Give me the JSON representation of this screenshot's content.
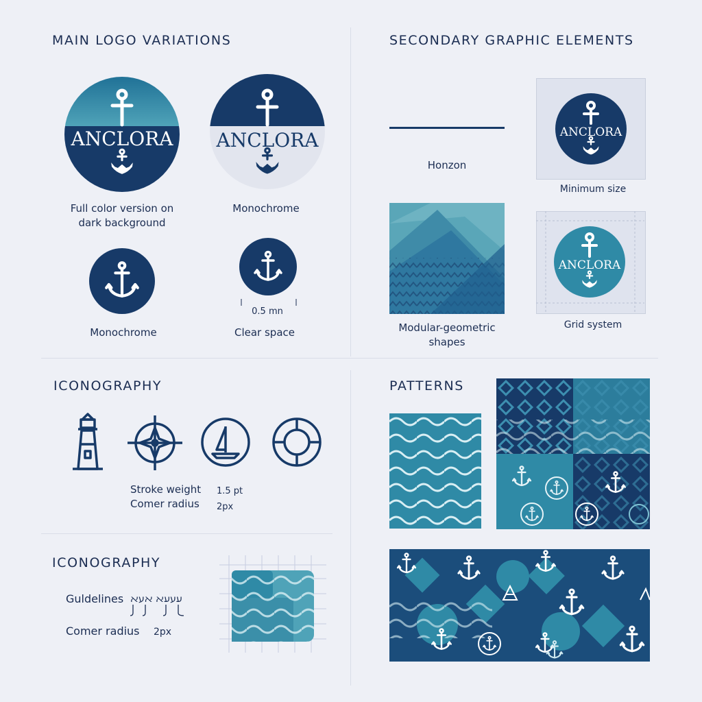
{
  "colors": {
    "navy": "#173a68",
    "teal": "#2f8aa6",
    "light_teal": "#4fa3b8",
    "background": "#eef0f6"
  },
  "sections": {
    "main_logo": {
      "title": "MAIN LOGO VARIATIONS",
      "brand": "ANCLORA",
      "captions": {
        "full_color": "Full color version on\ndark background",
        "monochrome_1": "Monochrome",
        "monochrome_2": "Monochrome",
        "clear_space": "Clear space",
        "clear_space_measure": "0.5 mn"
      }
    },
    "secondary": {
      "title": "SECONDARY GRAPHIC ELEMENTS",
      "horizon": "Honzon",
      "minimum_size": "Minimum size",
      "modular": "Modular-geometric\nshapes",
      "grid_system": "Grid system",
      "brand": "ANCLORA"
    },
    "iconography": {
      "title": "ICONOGRAPHY",
      "icons": [
        "lighthouse-icon",
        "compass-icon",
        "sailboat-icon",
        "lifebuoy-icon"
      ],
      "stroke_weight_label": "Stroke weight",
      "stroke_weight_value": "1.5 pt",
      "corner_radius_label": "Comer radius",
      "corner_radius_value": "2px"
    },
    "iconography_2": {
      "title": "ICONOGRAPHY",
      "guidelines_label": "Guldelines",
      "guidelines_glyphs": "ﬠעﬠﬡ ﬡעﬡ",
      "corner_radius_label": "Comer radius",
      "corner_radius_value": "2px"
    },
    "patterns": {
      "title": "PATTERNS"
    }
  }
}
